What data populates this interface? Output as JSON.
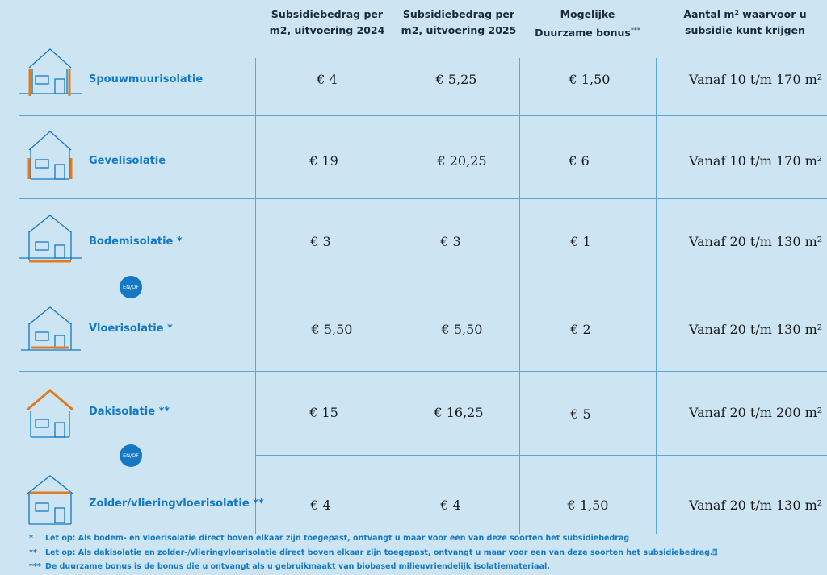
{
  "headers": {
    "col2024": [
      "Subsidiebedrag per",
      "m2, uitvoering 2024"
    ],
    "col2025": [
      "Subsidiebedrag per",
      "m2, uitvoering 2025"
    ],
    "bonus": [
      "Mogelijke",
      "Duurzame bonus"
    ],
    "bonus_mark": "***",
    "area": [
      "Aantal m² waarvoor u",
      "subsidie kunt krijgen"
    ]
  },
  "rows": [
    {
      "label": "Spouwmuurisolatie",
      "v2024": "€ 4",
      "v2025": "€ 5,25",
      "bonus": "€ 1,50",
      "area": "Vanaf 10 t/m 170 m²"
    },
    {
      "label": "Gevelisolatie",
      "v2024": "€ 19",
      "v2025": "€ 20,25",
      "bonus": "€ 6",
      "area": "Vanaf 10 t/m 170 m²"
    },
    {
      "label": "Bodemisolatie *",
      "v2024": "€ 3",
      "v2025": "€ 3",
      "bonus": "€ 1",
      "area": "Vanaf 20 t/m 130 m²"
    },
    {
      "label": "Vloerisolatie *",
      "v2024": "€ 5,50",
      "v2025": "€ 5,50",
      "bonus": "€ 2",
      "area": "Vanaf 20 t/m 130 m²"
    },
    {
      "label": "Dakisolatie **",
      "v2024": "€ 15",
      "v2025": "€ 16,25",
      "bonus": "€ 5",
      "area": "Vanaf 20 t/m 200 m²"
    },
    {
      "label": "Zolder/vlieringvloerisolatie **",
      "v2024": "€ 4",
      "v2025": "€ 4",
      "bonus": "€ 1,50",
      "area": "Vanaf 20 t/m 130 m²"
    }
  ],
  "badges": [
    "EN/OF",
    "EN/OF"
  ],
  "notes": [
    {
      "mark": "*",
      "text": "Let op: Als bodem- en vloerisolatie direct boven elkaar zijn toegepast, ontvangt u maar voor een van deze soorten het subsidiebedrag"
    },
    {
      "mark": "**",
      "text": "Let op: Als dakisolatie en zolder-/vlieringvloerisolatie direct boven elkaar zijn toegepast, ontvangt u maar voor een van deze soorten het subsidiebedrag.⍰"
    },
    {
      "mark": "***",
      "text": "De duurzame bonus is de bonus die u ontvangt als u gebruikmaakt van biobased milieuvriendelijk isolatiemateriaal."
    }
  ],
  "colors": {
    "accent": "#1478c4",
    "line": "#5aa6d9",
    "insulation": "#e07b1f",
    "background": "#cde5f3"
  }
}
